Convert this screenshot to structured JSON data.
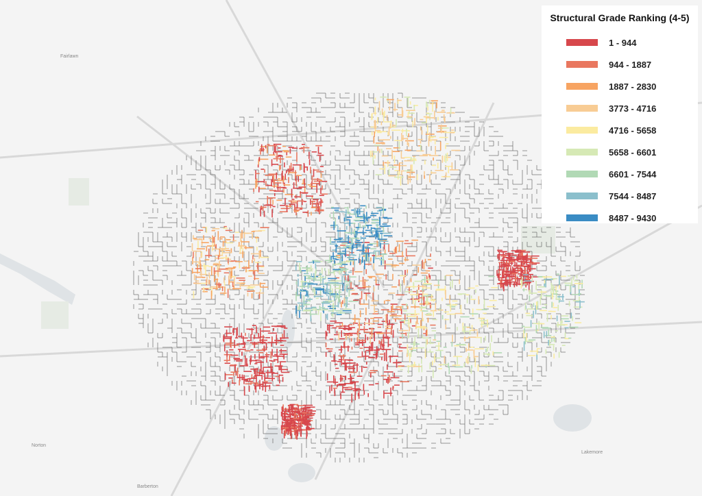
{
  "legend": {
    "title": "Structural Grade Ranking (4-5)",
    "items": [
      {
        "label": "1 - 944",
        "color": "#d7474c"
      },
      {
        "label": "944 - 1887",
        "color": "#e9775f"
      },
      {
        "label": "1887 - 2830",
        "color": "#f7a462"
      },
      {
        "label": "3773 - 4716",
        "color": "#f8cc94"
      },
      {
        "label": "4716 - 5658",
        "color": "#fbeba0"
      },
      {
        "label": "5658 - 6601",
        "color": "#d6e9b5"
      },
      {
        "label": "6601 - 7544",
        "color": "#b1d9b5"
      },
      {
        "label": "7544 - 8487",
        "color": "#8bbfcc"
      },
      {
        "label": "8487 - 9430",
        "color": "#3a8cc4"
      }
    ]
  },
  "places": [
    "Fairlawn",
    "Norton",
    "Barberton",
    "Lakemore"
  ]
}
